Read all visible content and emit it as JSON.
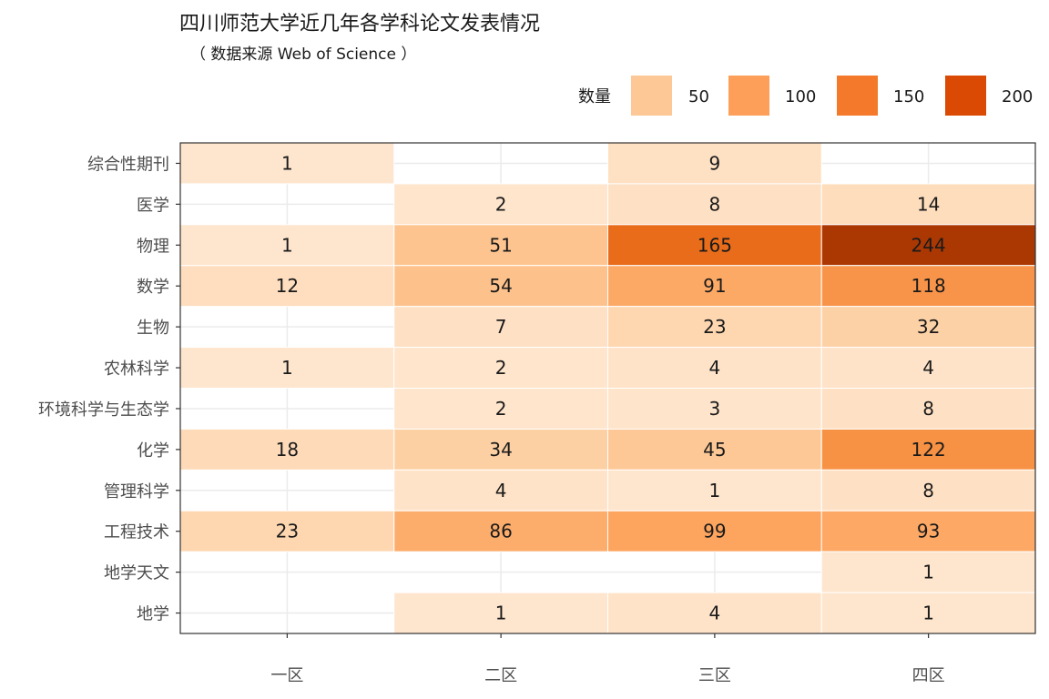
{
  "chart_data": {
    "type": "heatmap",
    "title": "四川师范大学近几年各学科论文发表情况",
    "subtitle": "（ 数据来源 Web of Science ）",
    "x_categories": [
      "一区",
      "二区",
      "三区",
      "四区"
    ],
    "y_categories": [
      "综合性期刊",
      "医学",
      "物理",
      "数学",
      "生物",
      "农林科学",
      "环境科学与生态学",
      "化学",
      "管理科学",
      "工程技术",
      "地学天文",
      "地学"
    ],
    "values": [
      [
        1,
        null,
        9,
        null
      ],
      [
        null,
        2,
        8,
        14
      ],
      [
        1,
        51,
        165,
        244
      ],
      [
        12,
        54,
        91,
        118
      ],
      [
        null,
        7,
        23,
        32
      ],
      [
        1,
        2,
        4,
        4
      ],
      [
        null,
        2,
        3,
        8
      ],
      [
        18,
        34,
        45,
        122
      ],
      [
        null,
        4,
        1,
        8
      ],
      [
        23,
        86,
        99,
        93
      ],
      [
        null,
        null,
        null,
        1
      ],
      [
        null,
        1,
        4,
        1
      ]
    ],
    "legend": {
      "title": "数量",
      "position": "top-right",
      "breaks": [
        50,
        100,
        150,
        200
      ],
      "break_labels": [
        "50",
        "100",
        "150",
        "200"
      ]
    },
    "color_scale": {
      "stops": [
        {
          "value": 0,
          "color": "#fee6ce"
        },
        {
          "value": 50,
          "color": "#fdc590"
        },
        {
          "value": 100,
          "color": "#fda35d"
        },
        {
          "value": 150,
          "color": "#f07a25"
        },
        {
          "value": 200,
          "color": "#d94a04"
        },
        {
          "value": 250,
          "color": "#a53603"
        }
      ],
      "legend_colors": [
        "#fdc895",
        "#fd9f58",
        "#f5792a",
        "#db4a04"
      ]
    },
    "grid": true
  }
}
